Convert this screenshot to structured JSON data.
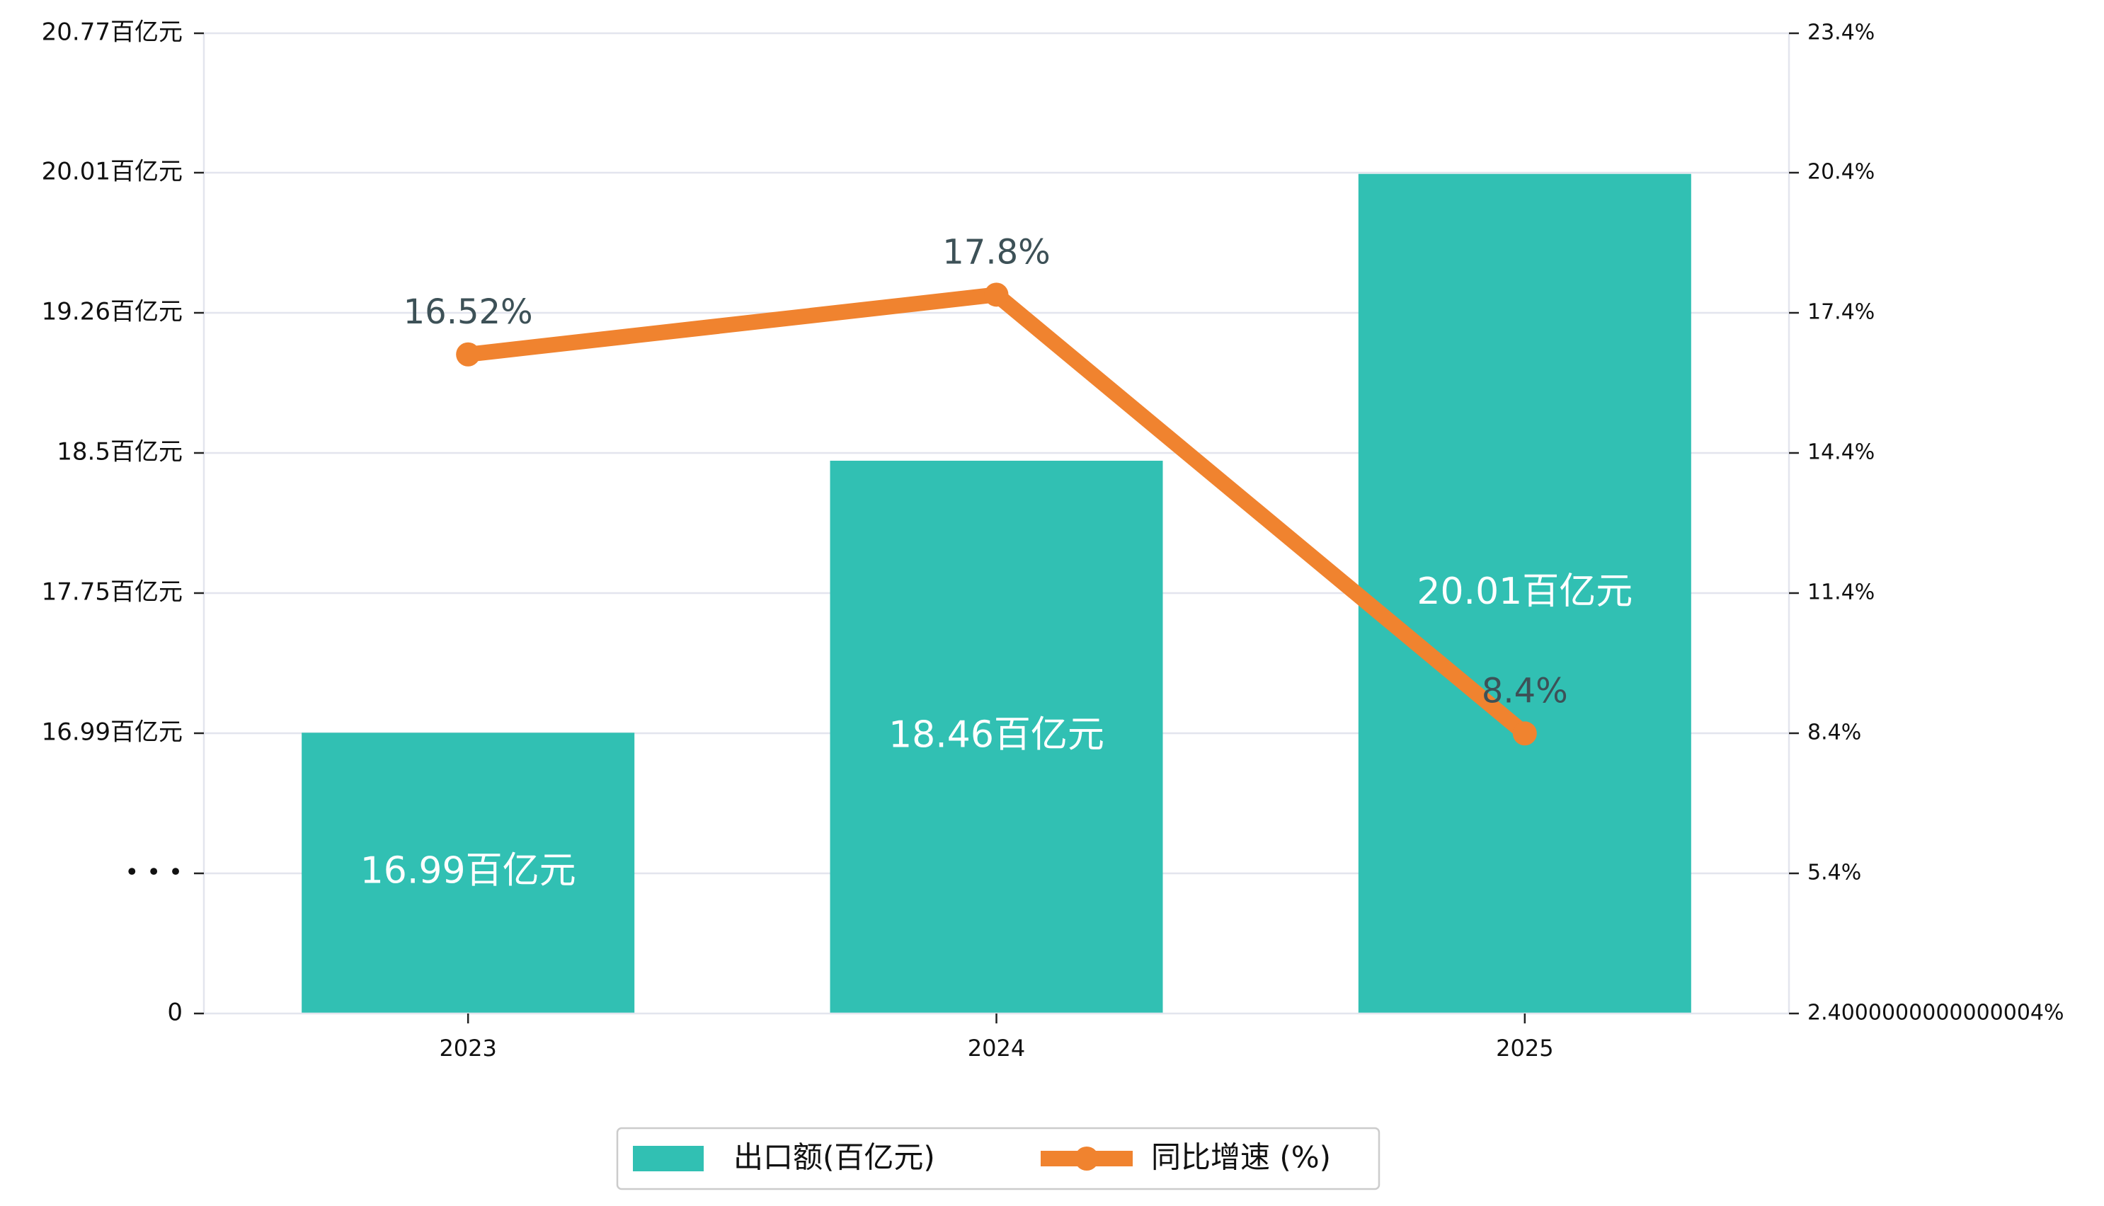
{
  "chart_data": {
    "type": "bar",
    "categories": [
      "2023",
      "2024",
      "2025"
    ],
    "series": [
      {
        "name": "出口额(百亿元)",
        "type": "bar",
        "axis": "left",
        "values": [
          16.99,
          18.46,
          20.01
        ],
        "data_labels": [
          "16.99百亿元",
          "18.46百亿元",
          "20.01百亿元"
        ]
      },
      {
        "name": "同比增速 (%)",
        "type": "line",
        "axis": "right",
        "values": [
          16.52,
          17.8,
          8.4
        ],
        "data_labels": [
          "16.52%",
          "17.8%",
          "8.4%"
        ]
      }
    ],
    "left_axis": {
      "axis_break": true,
      "break_label": "• • •",
      "tick_labels": [
        "0",
        "• • •",
        "16.99百亿元",
        "17.75百亿元",
        "18.5百亿元",
        "19.26百亿元",
        "20.01百亿元",
        "20.77百亿元"
      ],
      "tick_values": [
        null,
        null,
        16.99,
        17.75,
        18.5,
        19.26,
        20.01,
        20.77
      ],
      "ylim": [
        16.23,
        20.77
      ]
    },
    "right_axis": {
      "tick_labels": [
        "2.4000000000000004%",
        "5.4%",
        "8.4%",
        "11.4%",
        "14.4%",
        "17.4%",
        "20.4%",
        "23.4%"
      ],
      "ylim": [
        2.4,
        23.4
      ]
    },
    "grid": true,
    "legend_position": "bottom-center",
    "colors": {
      "bar": "#31c0b3",
      "line": "#f0832f",
      "grid": "#e3e5ee",
      "line_label": "#3d5157"
    }
  }
}
